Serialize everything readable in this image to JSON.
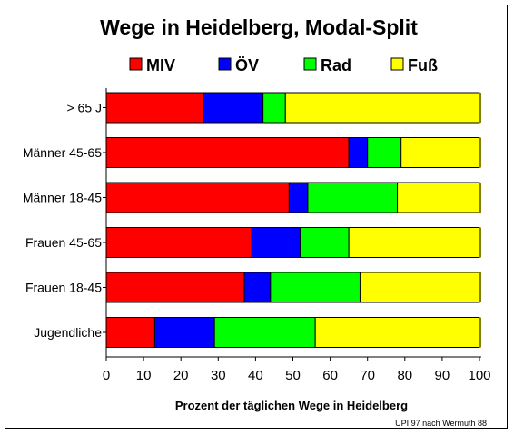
{
  "chart_data": {
    "type": "bar",
    "orientation": "horizontal",
    "stacked": true,
    "title": "Wege in Heidelberg, Modal-Split",
    "xlabel": "Prozent der täglichen Wege in Heidelberg",
    "ylabel": "",
    "xlim": [
      0,
      100
    ],
    "xticks": [
      "0",
      "10",
      "20",
      "30",
      "40",
      "50",
      "60",
      "70",
      "80",
      "90",
      "100"
    ],
    "legend_position": "top",
    "grid": false,
    "categories": [
      "> 65 J",
      "Männer 45-65",
      "Männer 18-45",
      "Frauen 45-65",
      "Frauen 18-45",
      "Jugendliche"
    ],
    "series": [
      {
        "name": "MIV",
        "color": "#ff0000",
        "values": [
          26,
          65,
          49,
          39,
          37,
          13
        ]
      },
      {
        "name": "ÖV",
        "color": "#0000ff",
        "values": [
          16,
          5,
          5,
          13,
          7,
          16
        ]
      },
      {
        "name": "Rad",
        "color": "#00ff00",
        "values": [
          6,
          9,
          24,
          13,
          24,
          27
        ]
      },
      {
        "name": "Fuß",
        "color": "#ffff00",
        "values": [
          52,
          21,
          22,
          35,
          32,
          44
        ]
      }
    ],
    "source": "UPI 97 nach Wermuth 88"
  }
}
